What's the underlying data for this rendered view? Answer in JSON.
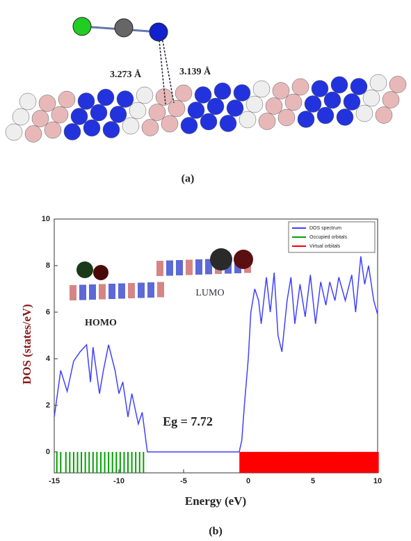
{
  "panel_a": {
    "distance_labels": [
      "3.273 Å",
      "3.139 Å"
    ],
    "caption": "(a)"
  },
  "chart_data": {
    "type": "line",
    "xlabel": "Energy (eV)",
    "ylabel": "DOS (states/eV)",
    "xlim": [
      -15,
      10
    ],
    "xticks": [
      -15,
      -10,
      -5,
      0,
      5,
      10
    ],
    "ylim": [
      -0.9,
      10
    ],
    "yticks": [
      0,
      2,
      4,
      6,
      8,
      10
    ],
    "legend": "upper right",
    "annotations": {
      "homo": "HOMO",
      "lumo": "LUMO",
      "gap": "Eg = 7.72"
    },
    "caption": "(b)",
    "series": [
      {
        "name": "DOS spectrum",
        "color": "#4040ff",
        "x": [
          -15,
          -14.5,
          -14,
          -13.5,
          -13,
          -12.5,
          -12.2,
          -12,
          -11.5,
          -11.2,
          -10.8,
          -10.3,
          -10,
          -9.7,
          -9.3,
          -9,
          -8.5,
          -8.2,
          -7.8,
          -0.7,
          -0.5,
          -0.3,
          0,
          0.2,
          0.5,
          0.8,
          1,
          1.4,
          1.7,
          2,
          2.3,
          2.6,
          3,
          3.3,
          3.6,
          4,
          4.4,
          4.8,
          5.2,
          5.6,
          6,
          6.3,
          6.7,
          7,
          7.5,
          8,
          8.3,
          8.7,
          9,
          9.3,
          9.7,
          10
        ],
        "values": [
          1.5,
          3.5,
          2.6,
          3.9,
          4.3,
          4.6,
          3.0,
          4.5,
          2.5,
          3.5,
          4.6,
          3.5,
          2.5,
          3.0,
          1.5,
          2.5,
          1.2,
          1.7,
          0,
          0,
          0.5,
          2,
          4,
          6,
          7,
          6.5,
          5.5,
          7.5,
          6,
          7.7,
          5,
          4.3,
          6.5,
          7.5,
          5.5,
          7.2,
          5.8,
          7.6,
          5.5,
          7.3,
          6.3,
          7.3,
          6.5,
          7.5,
          6.5,
          7.6,
          6,
          8.4,
          7.2,
          8,
          6.5,
          5.9
        ]
      },
      {
        "name": "Occupied orbitals",
        "color": "#00a000",
        "x": [
          -14.8,
          -14.5,
          -14.1,
          -13.8,
          -13.5,
          -13.2,
          -12.9,
          -12.6,
          -12.3,
          -12.0,
          -11.7,
          -11.4,
          -11.1,
          -10.8,
          -10.5,
          -10.2,
          -9.9,
          -9.6,
          -9.3,
          -9.0,
          -8.7,
          -8.4,
          -8.1
        ]
      },
      {
        "name": "Virtual orbitals",
        "color": "#ff0000",
        "x": [
          -0.5,
          -0.2,
          0.1,
          0.4,
          0.7,
          1.0,
          1.3,
          1.6,
          1.9,
          2.2,
          2.5,
          2.8,
          3.1,
          3.4,
          3.7,
          4.0,
          4.3,
          4.6,
          4.9,
          5.2,
          5.5,
          5.8,
          6.1,
          6.4,
          6.7,
          7.0,
          7.3,
          7.6,
          7.9,
          8.2,
          8.5,
          8.8,
          9.1,
          9.4,
          9.7,
          9.9
        ]
      }
    ]
  }
}
